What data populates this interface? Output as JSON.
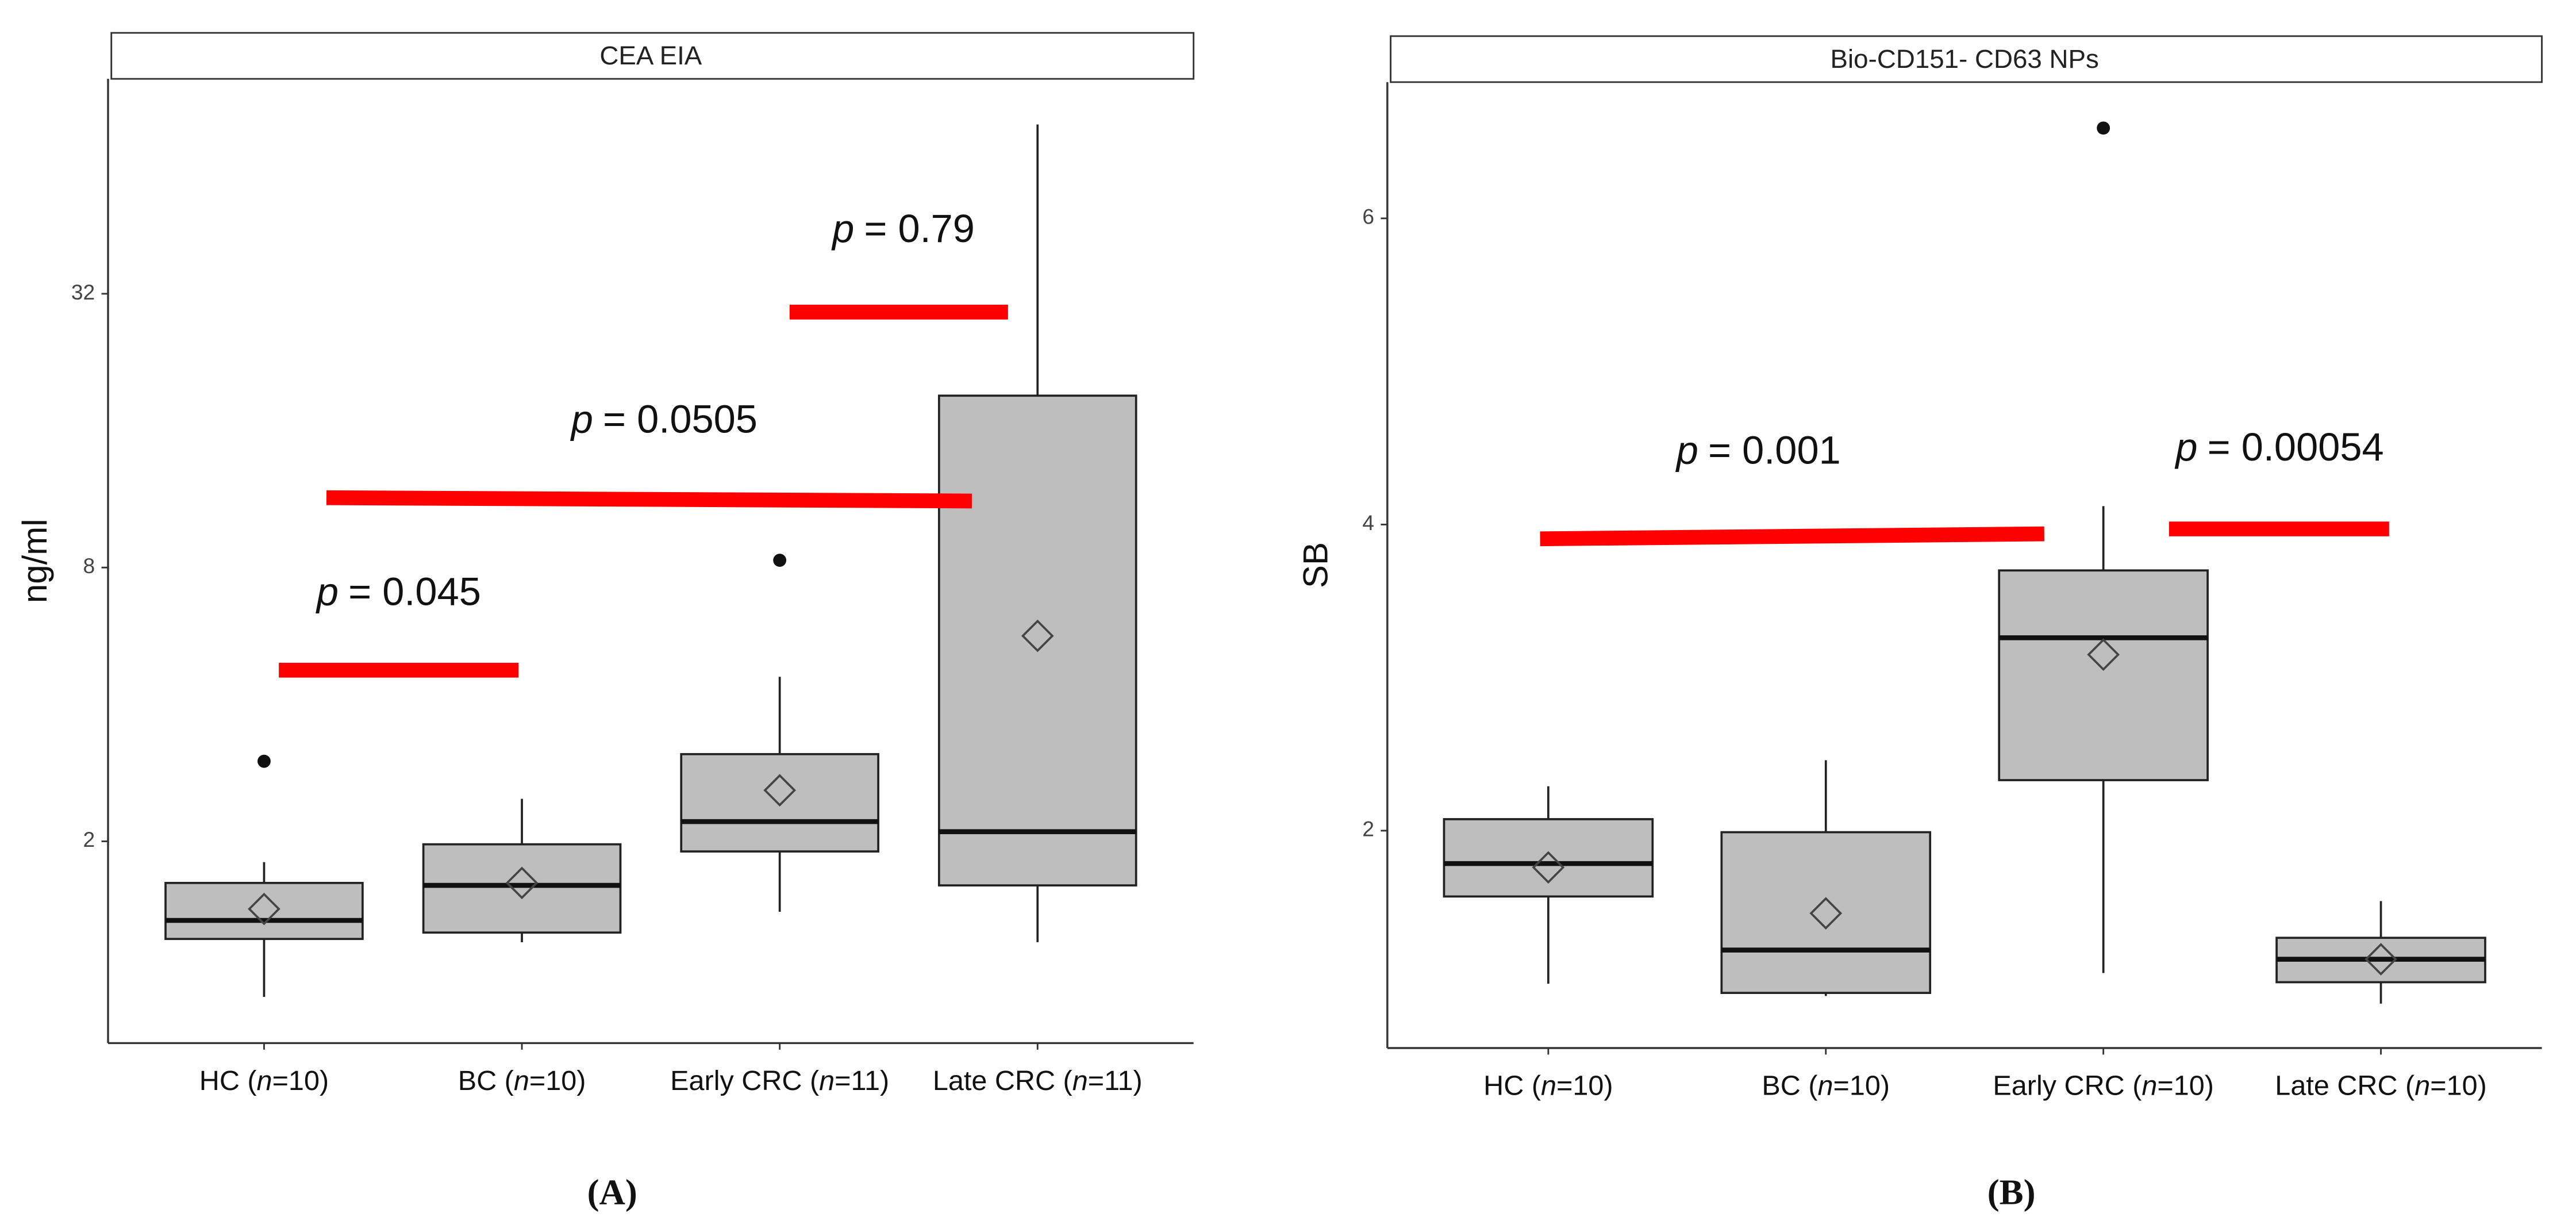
{
  "chart_data": [
    {
      "type": "box",
      "title": "CEA EIA",
      "panel_label": "(A)",
      "y_label": "ng/ml",
      "log_scale": true,
      "log_base": 2,
      "color": "#bebebe",
      "categories": [
        "HC (n=10)",
        "BC (n=10)",
        "Early CRC (n=11)",
        "Late CRC (n=11)"
      ],
      "boxes": [
        {
          "whislo": 0.91,
          "q1": 1.22,
          "med": 1.34,
          "q3": 1.62,
          "whishi": 1.8,
          "mean": 1.42,
          "fliers": [
            3.0
          ]
        },
        {
          "whislo": 1.2,
          "q1": 1.26,
          "med": 1.6,
          "q3": 1.97,
          "whishi": 2.48,
          "mean": 1.62,
          "fliers": []
        },
        {
          "whislo": 1.4,
          "q1": 1.9,
          "med": 2.21,
          "q3": 3.11,
          "whishi": 4.6,
          "mean": 2.59,
          "fliers": [
            8.3
          ]
        },
        {
          "whislo": 1.2,
          "q1": 1.6,
          "med": 2.1,
          "q3": 19.1,
          "whishi": 75.4,
          "mean": 5.66,
          "fliers": []
        }
      ],
      "ylim": [
        0.72,
        95
      ],
      "yticks": [
        2,
        8,
        32
      ],
      "annotations": [
        {
          "symbol": "p",
          "text": "= 0.045"
        },
        {
          "symbol": "p",
          "text": "= 0.0505"
        },
        {
          "symbol": "p",
          "text": "= 0.79"
        }
      ]
    },
    {
      "type": "box",
      "title": "Bio-CD151- CD63 NPs",
      "panel_label": "(B)",
      "y_label": "SB",
      "log_scale": false,
      "color": "#bebebe",
      "categories": [
        "HC (n=10)",
        "BC (n=10)",
        "Early CRC (n=10)",
        "Late CRC (n=10)"
      ],
      "boxes": [
        {
          "whislo": 1.0,
          "q1": 1.57,
          "med": 1.785,
          "q3": 2.075,
          "whishi": 2.29,
          "mean": 1.76,
          "fliers": []
        },
        {
          "whislo": 0.92,
          "q1": 0.94,
          "med": 1.22,
          "q3": 1.99,
          "whishi": 2.46,
          "mean": 1.46,
          "fliers": []
        },
        {
          "whislo": 1.07,
          "q1": 2.33,
          "med": 3.26,
          "q3": 3.7,
          "whishi": 4.12,
          "mean": 3.15,
          "fliers": [
            6.59
          ]
        },
        {
          "whislo": 0.87,
          "q1": 1.01,
          "med": 1.16,
          "q3": 1.3,
          "whishi": 1.54,
          "mean": 1.16,
          "fliers": []
        }
      ],
      "ylim": [
        0.58,
        6.89
      ],
      "yticks": [
        2,
        4,
        6
      ],
      "annotations": [
        {
          "symbol": "p",
          "text": "= 0.001"
        },
        {
          "symbol": "p",
          "text": "= 0.00054"
        }
      ]
    }
  ]
}
